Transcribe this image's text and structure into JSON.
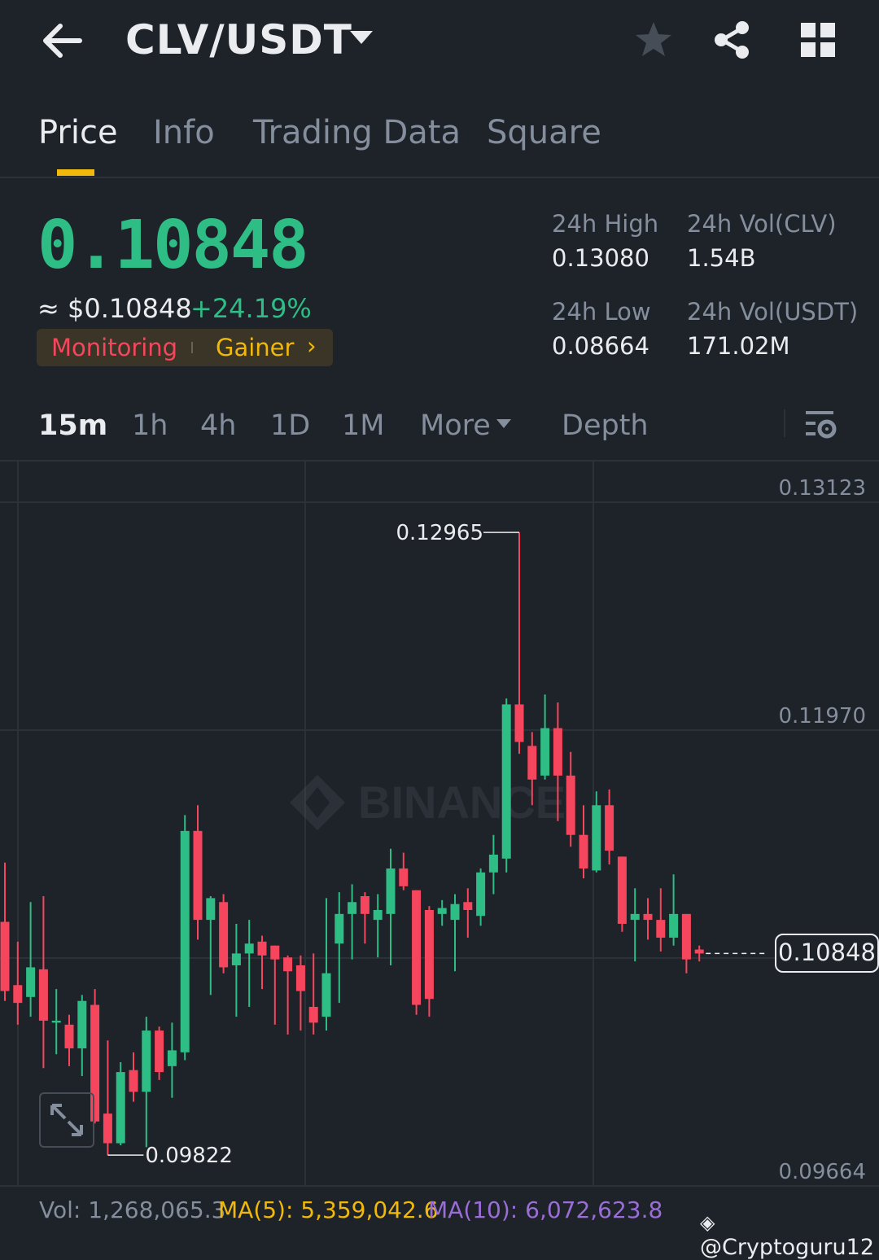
{
  "header": {
    "pair": "CLV/USDT"
  },
  "tabs": [
    {
      "label": "Price",
      "active": true
    },
    {
      "label": "Info",
      "active": false
    },
    {
      "label": "Trading Data",
      "active": false
    },
    {
      "label": "Square",
      "active": false
    }
  ],
  "ticker": {
    "last_price": "0.10848",
    "approx_usd": "≈ $0.10848",
    "change_pct": "+24.19%",
    "tag_monitoring": "Monitoring",
    "tag_gainer": "Gainer",
    "high_label": "24h High",
    "high_value": "0.13080",
    "low_label": "24h Low",
    "low_value": "0.08664",
    "vol_base_label": "24h Vol(CLV)",
    "vol_base_value": "1.54B",
    "vol_quote_label": "24h Vol(USDT)",
    "vol_quote_value": "171.02M"
  },
  "timeframes": [
    {
      "label": "15m",
      "active": true
    },
    {
      "label": "1h",
      "active": false
    },
    {
      "label": "4h",
      "active": false
    },
    {
      "label": "1D",
      "active": false
    },
    {
      "label": "1M",
      "active": false
    }
  ],
  "more_label": "More",
  "depth_label": "Depth",
  "colors": {
    "up": "#2ebd85",
    "down": "#f6465d",
    "accent": "#f0b90b"
  },
  "chart_data": {
    "type": "candlestick",
    "y_ticks": [
      "0.13123",
      "0.11970",
      "0.09664"
    ],
    "ylim": [
      0.09664,
      0.13123
    ],
    "high_label": "0.12965",
    "low_label": "0.09822",
    "last_price_label": "0.10848",
    "watermark": "BINANCE",
    "candles": [
      {
        "o": 0.11,
        "h": 0.113,
        "l": 0.106,
        "c": 0.1065
      },
      {
        "o": 0.1068,
        "h": 0.109,
        "l": 0.1048,
        "c": 0.1059
      },
      {
        "o": 0.1062,
        "h": 0.111,
        "l": 0.1052,
        "c": 0.1077
      },
      {
        "o": 0.1076,
        "h": 0.1113,
        "l": 0.1026,
        "c": 0.105
      },
      {
        "o": 0.1049,
        "h": 0.1066,
        "l": 0.1033,
        "c": 0.105
      },
      {
        "o": 0.1048,
        "h": 0.1053,
        "l": 0.1027,
        "c": 0.1036
      },
      {
        "o": 0.1036,
        "h": 0.1063,
        "l": 0.1022,
        "c": 0.106
      },
      {
        "o": 0.1058,
        "h": 0.1066,
        "l": 0.0998,
        "c": 0.0999
      },
      {
        "o": 0.1003,
        "h": 0.104,
        "l": 0.0982,
        "c": 0.0988
      },
      {
        "o": 0.0988,
        "h": 0.1029,
        "l": 0.0987,
        "c": 0.1024
      },
      {
        "o": 0.1025,
        "h": 0.1034,
        "l": 0.1009,
        "c": 0.1014
      },
      {
        "o": 0.1014,
        "h": 0.1052,
        "l": 0.0986,
        "c": 0.1045
      },
      {
        "o": 0.1045,
        "h": 0.1047,
        "l": 0.102,
        "c": 0.1024
      },
      {
        "o": 0.1027,
        "h": 0.1049,
        "l": 0.1011,
        "c": 0.1035
      },
      {
        "o": 0.1034,
        "h": 0.1154,
        "l": 0.103,
        "c": 0.1146
      },
      {
        "o": 0.1146,
        "h": 0.1159,
        "l": 0.1091,
        "c": 0.1101
      },
      {
        "o": 0.1101,
        "h": 0.1113,
        "l": 0.1063,
        "c": 0.1112
      },
      {
        "o": 0.111,
        "h": 0.1114,
        "l": 0.1074,
        "c": 0.1077
      },
      {
        "o": 0.1078,
        "h": 0.1099,
        "l": 0.1052,
        "c": 0.1084
      },
      {
        "o": 0.1084,
        "h": 0.1101,
        "l": 0.1057,
        "c": 0.1089
      },
      {
        "o": 0.109,
        "h": 0.1093,
        "l": 0.1066,
        "c": 0.1083
      },
      {
        "o": 0.1088,
        "h": 0.1088,
        "l": 0.1048,
        "c": 0.1081
      },
      {
        "o": 0.1082,
        "h": 0.1083,
        "l": 0.1043,
        "c": 0.1075
      },
      {
        "o": 0.1078,
        "h": 0.1083,
        "l": 0.1045,
        "c": 0.1065
      },
      {
        "o": 0.1057,
        "h": 0.1084,
        "l": 0.1043,
        "c": 0.1049
      },
      {
        "o": 0.1052,
        "h": 0.1112,
        "l": 0.1045,
        "c": 0.1074
      },
      {
        "o": 0.1089,
        "h": 0.1115,
        "l": 0.1059,
        "c": 0.1104
      },
      {
        "o": 0.1104,
        "h": 0.1119,
        "l": 0.1081,
        "c": 0.111
      },
      {
        "o": 0.1113,
        "h": 0.1115,
        "l": 0.1089,
        "c": 0.1104
      },
      {
        "o": 0.1101,
        "h": 0.1114,
        "l": 0.1082,
        "c": 0.1106
      },
      {
        "o": 0.1104,
        "h": 0.1137,
        "l": 0.1078,
        "c": 0.1127
      },
      {
        "o": 0.1127,
        "h": 0.1135,
        "l": 0.1116,
        "c": 0.1118
      },
      {
        "o": 0.1116,
        "h": 0.1116,
        "l": 0.1053,
        "c": 0.1058
      },
      {
        "o": 0.1106,
        "h": 0.1108,
        "l": 0.1052,
        "c": 0.1061
      },
      {
        "o": 0.1104,
        "h": 0.1111,
        "l": 0.1098,
        "c": 0.1107
      },
      {
        "o": 0.1101,
        "h": 0.1114,
        "l": 0.1075,
        "c": 0.1109
      },
      {
        "o": 0.111,
        "h": 0.1117,
        "l": 0.1092,
        "c": 0.1106
      },
      {
        "o": 0.1103,
        "h": 0.1127,
        "l": 0.1098,
        "c": 0.1125
      },
      {
        "o": 0.1125,
        "h": 0.1144,
        "l": 0.1114,
        "c": 0.1134
      },
      {
        "o": 0.1132,
        "h": 0.1213,
        "l": 0.1125,
        "c": 0.121
      },
      {
        "o": 0.121,
        "h": 0.1297,
        "l": 0.1185,
        "c": 0.1191
      },
      {
        "o": 0.1189,
        "h": 0.1196,
        "l": 0.1159,
        "c": 0.1172
      },
      {
        "o": 0.1174,
        "h": 0.1215,
        "l": 0.1172,
        "c": 0.1198
      },
      {
        "o": 0.1198,
        "h": 0.1211,
        "l": 0.1151,
        "c": 0.1174
      },
      {
        "o": 0.1174,
        "h": 0.1186,
        "l": 0.1138,
        "c": 0.1144
      },
      {
        "o": 0.1144,
        "h": 0.1159,
        "l": 0.1122,
        "c": 0.1127
      },
      {
        "o": 0.1126,
        "h": 0.1166,
        "l": 0.1125,
        "c": 0.1159
      },
      {
        "o": 0.1159,
        "h": 0.1167,
        "l": 0.1129,
        "c": 0.1136
      },
      {
        "o": 0.1133,
        "h": 0.1133,
        "l": 0.1095,
        "c": 0.1099
      },
      {
        "o": 0.1101,
        "h": 0.1117,
        "l": 0.108,
        "c": 0.1104
      },
      {
        "o": 0.1104,
        "h": 0.1112,
        "l": 0.1091,
        "c": 0.1101
      },
      {
        "o": 0.1101,
        "h": 0.1117,
        "l": 0.1085,
        "c": 0.1092
      },
      {
        "o": 0.1092,
        "h": 0.1124,
        "l": 0.1088,
        "c": 0.1104
      },
      {
        "o": 0.1104,
        "h": 0.1104,
        "l": 0.1074,
        "c": 0.1081
      },
      {
        "o": 0.1086,
        "h": 0.1088,
        "l": 0.108,
        "c": 0.1084
      }
    ]
  },
  "footer": {
    "vol": "Vol: 1,268,065.3",
    "ma5": "MA(5): 5,359,042.6",
    "ma10": "MA(10): 6,072,623.8",
    "credit": "@Cryptoguru12"
  }
}
